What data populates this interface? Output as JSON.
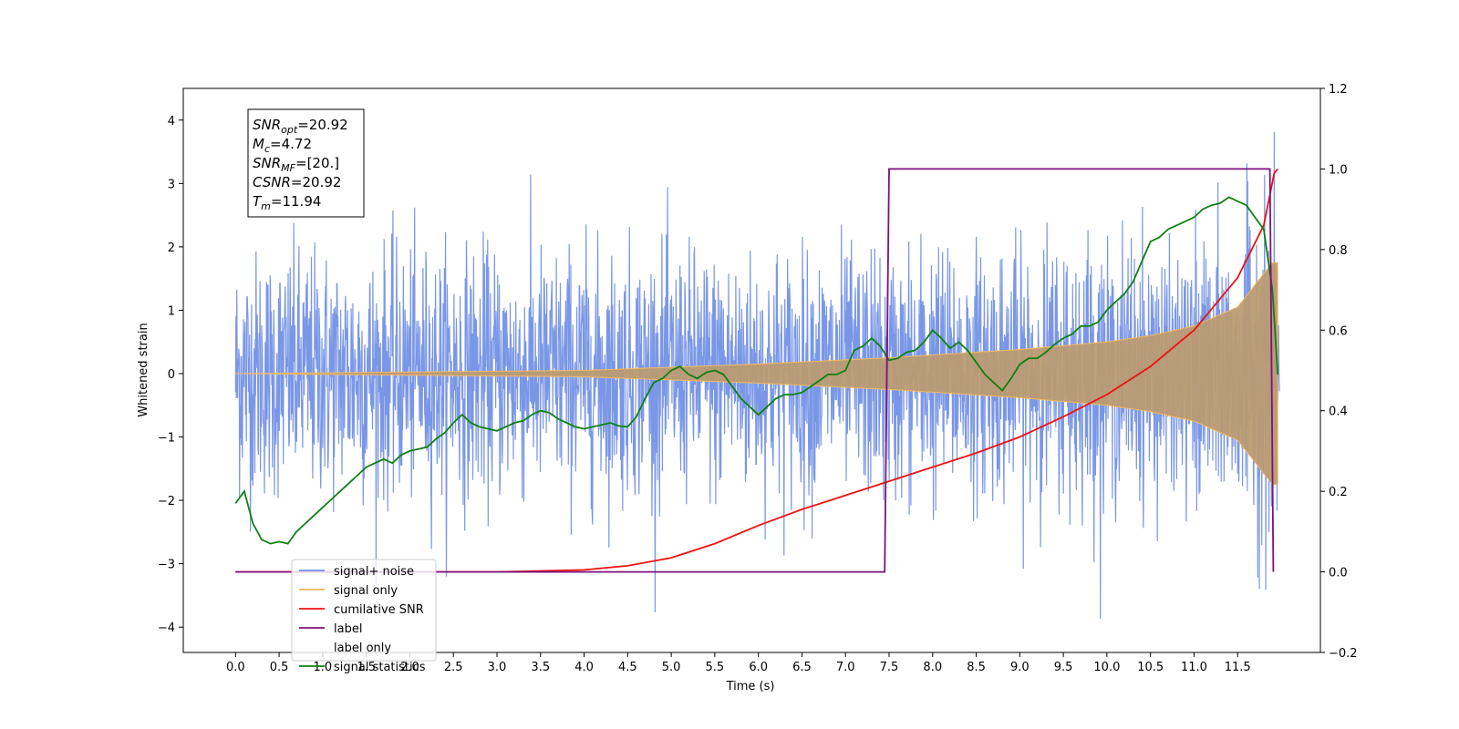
{
  "chart_data": {
    "type": "line",
    "xlabel": "Time (s)",
    "ylabel": "Whitened strain",
    "xlim": [
      -0.6,
      12.45
    ],
    "ylim": [
      -4.4,
      4.5
    ],
    "y2lim": [
      -0.2,
      1.2
    ],
    "x_ticks": [
      0.0,
      0.5,
      1.0,
      1.5,
      2.0,
      2.5,
      3.0,
      3.5,
      4.0,
      4.5,
      5.0,
      5.5,
      6.0,
      6.5,
      7.0,
      7.5,
      8.0,
      8.5,
      9.0,
      9.5,
      10.0,
      10.5,
      11.0,
      11.5
    ],
    "x_tick_labels": [
      "0.0",
      "0.5",
      "1.0",
      "1.5",
      "2.0",
      "2.5",
      "3.0",
      "3.5",
      "4.0",
      "4.5",
      "5.0",
      "5.5",
      "6.0",
      "6.5",
      "7.0",
      "7.5",
      "8.0",
      "8.5",
      "9.0",
      "9.5",
      "10.0",
      "10.5",
      "11.0",
      "11.5"
    ],
    "y_ticks": [
      -4,
      -3,
      -2,
      -1,
      0,
      1,
      2,
      3,
      4
    ],
    "y_tick_labels": [
      "−4",
      "−3",
      "−2",
      "−1",
      "0",
      "1",
      "2",
      "3",
      "4"
    ],
    "y2_ticks": [
      -0.2,
      0.0,
      0.2,
      0.4,
      0.6,
      0.8,
      1.0,
      1.2
    ],
    "y2_tick_labels": [
      "−0.2",
      "0.0",
      "0.2",
      "0.4",
      "0.6",
      "0.8",
      "1.0",
      "1.2"
    ],
    "grid": false,
    "legend_placement": "bottom-left",
    "annotation_box": [
      {
        "base": "SNR",
        "sub": "opt",
        "value": "=20.92"
      },
      {
        "base": "M",
        "sub": "c",
        "value": "=4.72"
      },
      {
        "base": "SNR",
        "sub": "MF",
        "value": "=[20.]"
      },
      {
        "base": "CSNR",
        "sub": "",
        "value": "=20.92"
      },
      {
        "base": "T",
        "sub": "m",
        "value": "=11.94"
      }
    ],
    "series": [
      {
        "name": "signal+ noise",
        "axis": "left",
        "color": "#7391e6",
        "style": "noise",
        "description_values": {
          "t_start": 0.0,
          "t_end": 11.98,
          "noise_amplitude_range": [
            -4.0,
            4.1
          ]
        }
      },
      {
        "name": "signal only",
        "axis": "left",
        "color": "#f5b85c",
        "style": "chirp",
        "description_values": {
          "t_start": 0.0,
          "t_end": 11.96,
          "envelope": [
            [
              0.0,
              0.0
            ],
            [
              4.0,
              0.05
            ],
            [
              6.0,
              0.15
            ],
            [
              7.5,
              0.25
            ],
            [
              9.0,
              0.38
            ],
            [
              10.0,
              0.5
            ],
            [
              10.5,
              0.6
            ],
            [
              11.0,
              0.75
            ],
            [
              11.5,
              1.05
            ],
            [
              11.9,
              1.75
            ],
            [
              11.96,
              1.75
            ]
          ]
        }
      },
      {
        "name": "cumilative SNR",
        "axis": "right",
        "color": "#ee1111",
        "x": [
          0.0,
          3.0,
          4.0,
          4.5,
          5.0,
          5.5,
          6.0,
          6.5,
          7.0,
          7.5,
          8.0,
          8.5,
          9.0,
          9.5,
          10.0,
          10.5,
          11.0,
          11.5,
          11.8,
          11.92,
          11.96
        ],
        "y": [
          0.0,
          0.0,
          0.005,
          0.015,
          0.035,
          0.07,
          0.115,
          0.155,
          0.19,
          0.225,
          0.26,
          0.295,
          0.335,
          0.385,
          0.44,
          0.51,
          0.6,
          0.73,
          0.86,
          0.99,
          1.0
        ]
      },
      {
        "name": "label",
        "axis": "right",
        "color": "#7e107e",
        "x": [
          0.0,
          7.45,
          7.5,
          11.87,
          11.91
        ],
        "y": [
          0.0,
          0.0,
          1.0,
          1.0,
          0.0
        ]
      },
      {
        "name": "label only",
        "axis": "right",
        "color": "#7e107e",
        "hidden_in_plot": true,
        "x": [],
        "y": []
      },
      {
        "name": "signal statistics",
        "axis": "right",
        "color": "#118011",
        "x": [
          0.0,
          0.1,
          0.2,
          0.3,
          0.4,
          0.5,
          0.6,
          0.7,
          0.8,
          0.9,
          1.0,
          1.1,
          1.2,
          1.3,
          1.4,
          1.5,
          1.6,
          1.7,
          1.8,
          1.9,
          2.0,
          2.1,
          2.2,
          2.3,
          2.4,
          2.5,
          2.6,
          2.7,
          2.8,
          2.9,
          3.0,
          3.1,
          3.2,
          3.3,
          3.4,
          3.5,
          3.6,
          3.7,
          3.8,
          3.9,
          4.0,
          4.1,
          4.2,
          4.3,
          4.4,
          4.5,
          4.6,
          4.7,
          4.8,
          4.9,
          5.0,
          5.1,
          5.2,
          5.3,
          5.4,
          5.5,
          5.6,
          5.7,
          5.8,
          5.9,
          6.0,
          6.1,
          6.2,
          6.3,
          6.4,
          6.5,
          6.6,
          6.7,
          6.8,
          6.9,
          7.0,
          7.1,
          7.2,
          7.3,
          7.4,
          7.5,
          7.6,
          7.7,
          7.8,
          7.9,
          8.0,
          8.1,
          8.2,
          8.3,
          8.4,
          8.5,
          8.6,
          8.7,
          8.8,
          8.9,
          9.0,
          9.1,
          9.2,
          9.3,
          9.4,
          9.5,
          9.6,
          9.7,
          9.8,
          9.9,
          10.0,
          10.1,
          10.2,
          10.3,
          10.4,
          10.5,
          10.6,
          10.7,
          10.8,
          10.9,
          11.0,
          11.1,
          11.2,
          11.3,
          11.4,
          11.5,
          11.6,
          11.7,
          11.8,
          11.9,
          11.96
        ],
        "y": [
          0.17,
          0.2,
          0.12,
          0.08,
          0.07,
          0.075,
          0.07,
          0.1,
          0.12,
          0.14,
          0.16,
          0.18,
          0.2,
          0.22,
          0.24,
          0.26,
          0.27,
          0.28,
          0.27,
          0.29,
          0.3,
          0.305,
          0.31,
          0.33,
          0.345,
          0.37,
          0.39,
          0.37,
          0.36,
          0.355,
          0.35,
          0.36,
          0.37,
          0.375,
          0.39,
          0.4,
          0.395,
          0.38,
          0.37,
          0.36,
          0.355,
          0.36,
          0.365,
          0.37,
          0.362,
          0.36,
          0.385,
          0.43,
          0.47,
          0.48,
          0.5,
          0.51,
          0.49,
          0.48,
          0.495,
          0.5,
          0.49,
          0.46,
          0.43,
          0.41,
          0.39,
          0.41,
          0.43,
          0.44,
          0.44,
          0.445,
          0.46,
          0.475,
          0.49,
          0.49,
          0.5,
          0.55,
          0.56,
          0.58,
          0.56,
          0.525,
          0.53,
          0.545,
          0.55,
          0.57,
          0.6,
          0.58,
          0.555,
          0.57,
          0.55,
          0.52,
          0.49,
          0.47,
          0.45,
          0.48,
          0.515,
          0.53,
          0.53,
          0.545,
          0.565,
          0.58,
          0.59,
          0.61,
          0.61,
          0.62,
          0.65,
          0.67,
          0.69,
          0.72,
          0.77,
          0.82,
          0.83,
          0.85,
          0.86,
          0.87,
          0.88,
          0.9,
          0.91,
          0.915,
          0.93,
          0.92,
          0.91,
          0.88,
          0.85,
          0.7,
          0.49
        ]
      }
    ]
  }
}
